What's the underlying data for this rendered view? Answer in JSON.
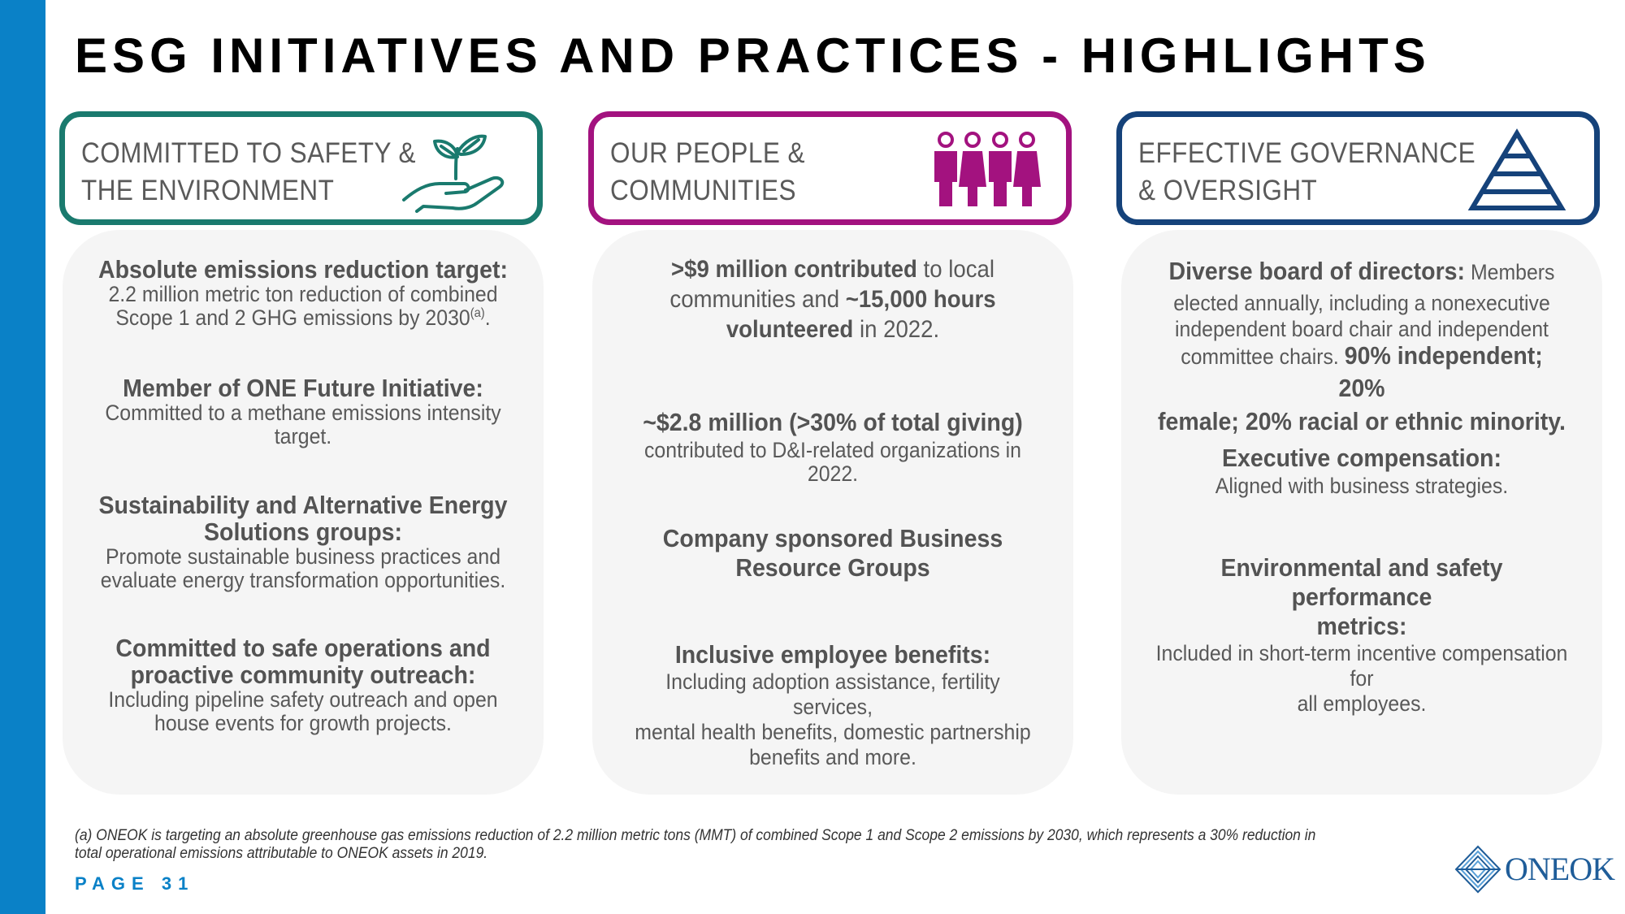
{
  "slide": {
    "title": "ESG INITIATIVES AND PRACTICES - HIGHLIGHTS",
    "page": "PAGE 31",
    "footnote": "(a) ONEOK is targeting an absolute greenhouse gas emissions reduction of 2.2 million metric tons (MMT) of combined Scope 1 and Scope 2 emissions by 2030, which represents a 30% reduction in total operational emissions attributable to ONEOK assets in 2019.",
    "logo_text": "ONEOK"
  },
  "colors": {
    "accent_blue": "#0a81c7",
    "green": "#1a7a6e",
    "magenta": "#a3127f",
    "navy": "#15427a"
  },
  "col1": {
    "header": [
      "COMMITTED TO SAFETY &",
      "THE ENVIRONMENT"
    ],
    "icon": "plant-in-hand-icon",
    "items": [
      {
        "heading": "Absolute emissions reduction target:",
        "body": [
          "2.2 million metric ton reduction of combined",
          "Scope 1 and 2 GHG emissions by 2030"
        ],
        "sup": "(a)",
        "tail": "."
      },
      {
        "heading": "Member of ONE Future Initiative:",
        "body": [
          "Committed to a methane emissions intensity",
          "target."
        ]
      },
      {
        "heading": [
          "Sustainability and Alternative Energy",
          "Solutions groups:"
        ],
        "body": [
          "Promote sustainable business practices and",
          "evaluate energy transformation opportunities."
        ]
      },
      {
        "heading": [
          "Committed to safe operations and",
          "proactive community outreach:"
        ],
        "body": [
          "Including pipeline safety outreach and open",
          "house events for growth projects."
        ]
      }
    ]
  },
  "col2": {
    "header": [
      "OUR PEOPLE &",
      "COMMUNITIES"
    ],
    "icon": "people-group-icon",
    "item1": {
      "b1": ">$9 million contributed",
      "t1": " to local",
      "t2": "communities and ",
      "b2": "~15,000 hours",
      "b3": "volunteered",
      "t3": " in 2022."
    },
    "item2": {
      "heading": "~$2.8 million (>30% of total giving)",
      "body": "contributed to D&I-related organizations in 2022."
    },
    "item3": {
      "heading": [
        "Company sponsored Business",
        "Resource Groups"
      ]
    },
    "item4": {
      "heading": "Inclusive employee benefits:",
      "body": [
        "Including adoption assistance, fertility services,",
        "mental health benefits, domestic partnership",
        "benefits and more."
      ]
    }
  },
  "col3": {
    "header": [
      "EFFECTIVE GOVERNANCE",
      "& OVERSIGHT"
    ],
    "icon": "pyramid-icon",
    "item1": {
      "b1": "Diverse board of directors:",
      "t1": " Members",
      "t2": "elected annually, including a nonexecutive",
      "t3": "independent board chair and independent",
      "t4": "committee chairs. ",
      "b2": "90% independent; 20%",
      "b3": "female; 20% racial or ethnic minority."
    },
    "item2": {
      "heading": "Executive compensation:",
      "body": "Aligned with business strategies."
    },
    "item3": {
      "heading": [
        "Environmental and safety performance",
        "metrics:"
      ],
      "body": [
        "Included in short-term incentive compensation for",
        "all employees."
      ]
    }
  }
}
